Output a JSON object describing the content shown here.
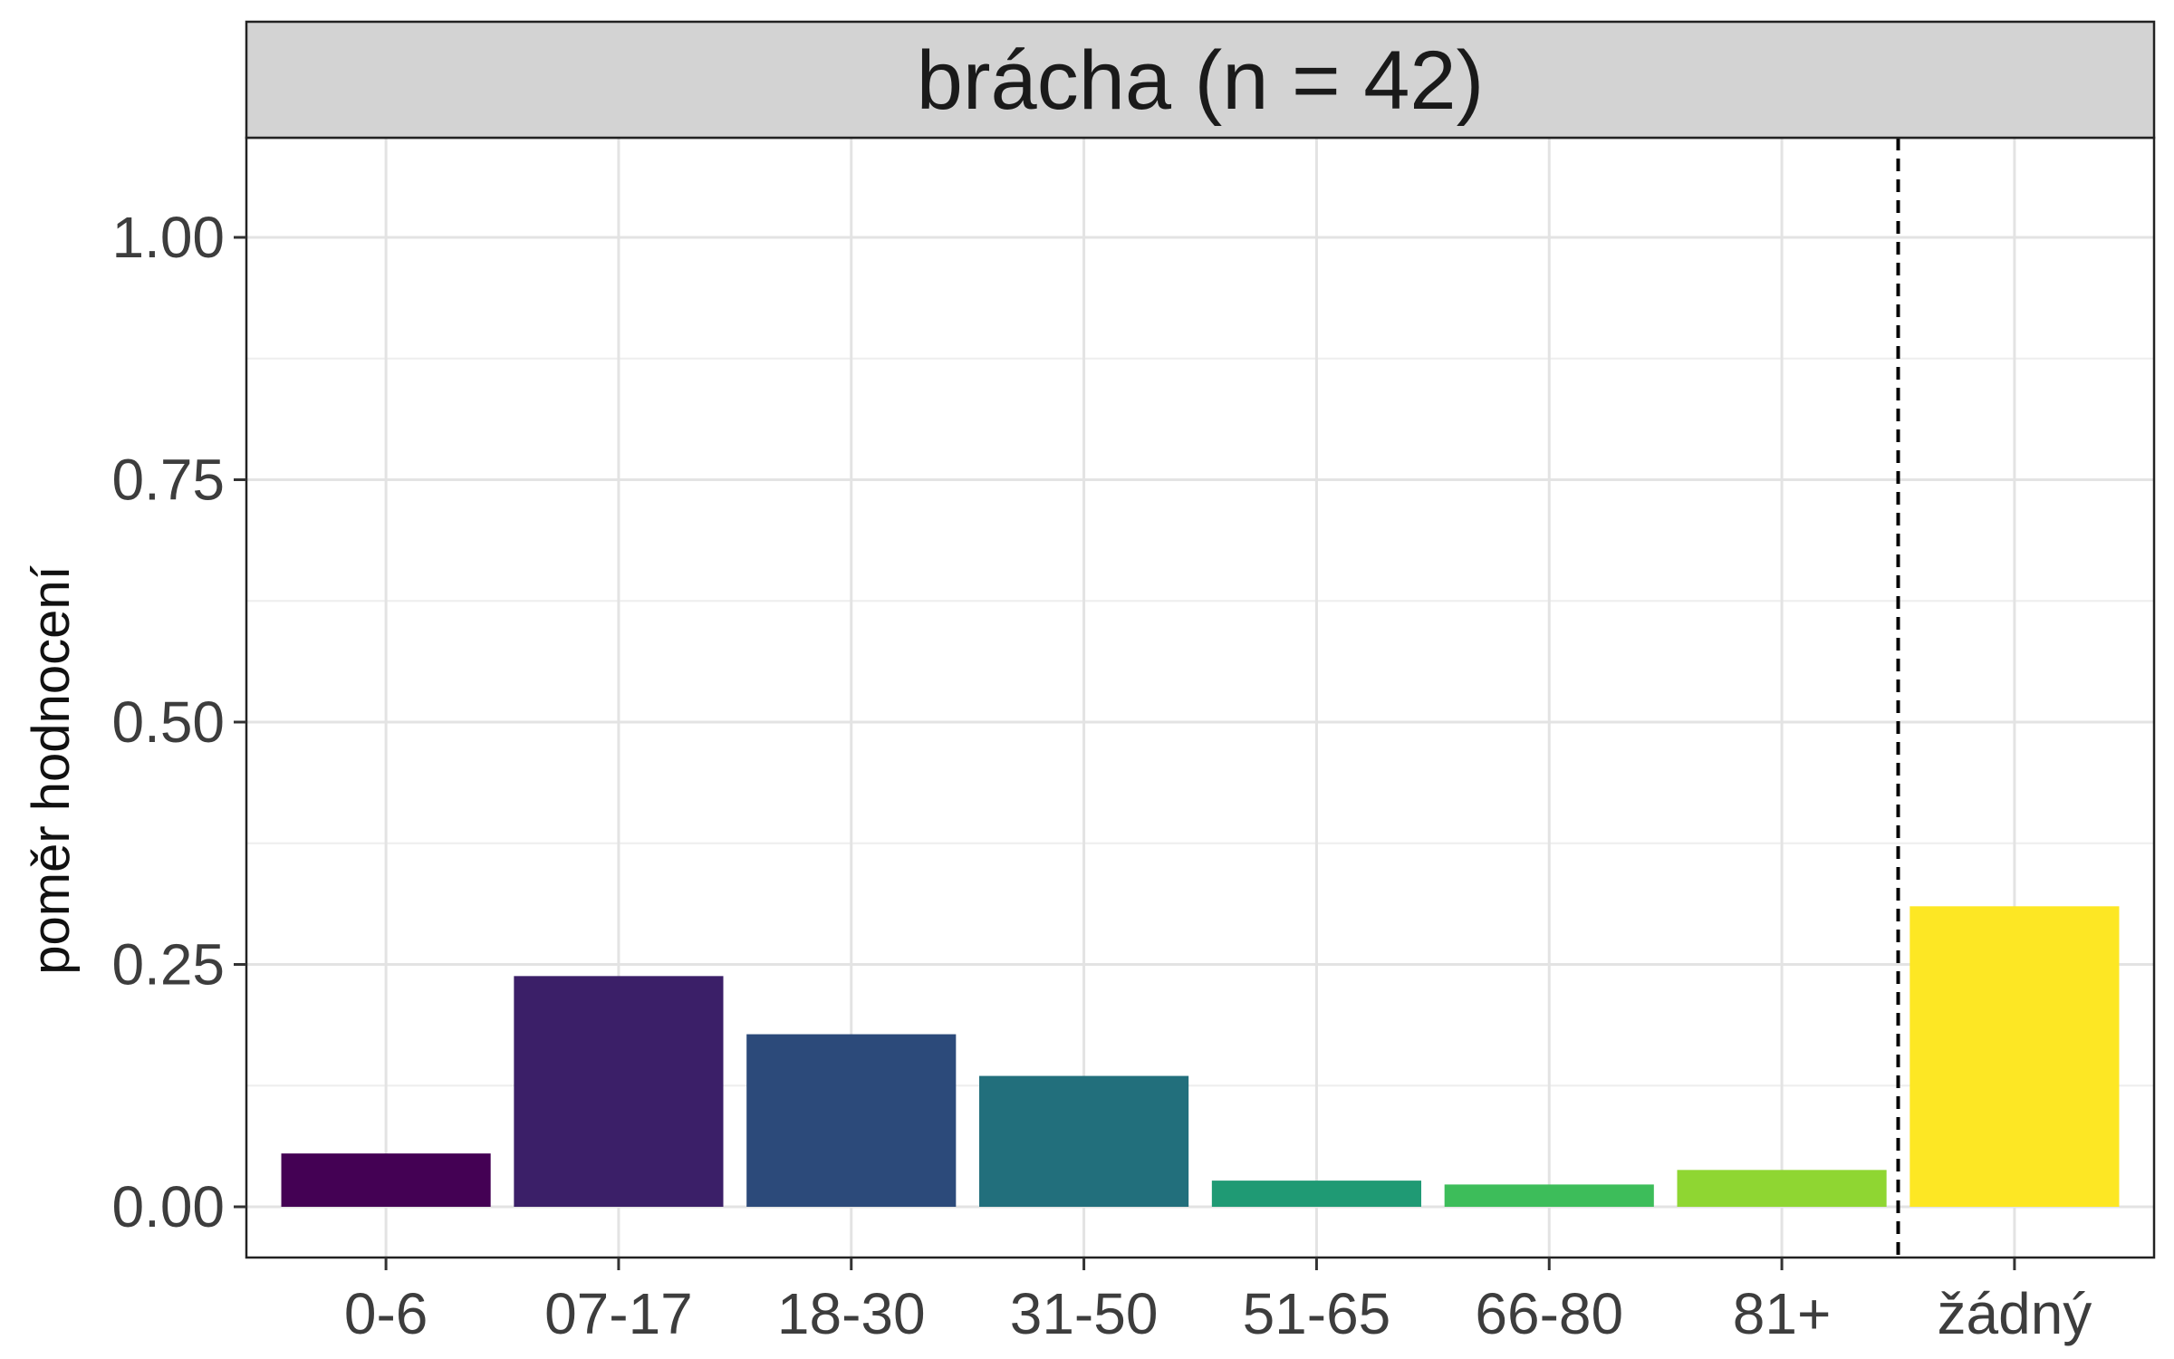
{
  "chart_data": {
    "type": "bar",
    "facet_title": "brácha (n = 42)",
    "xlabel": "",
    "ylabel": "poměr hodnocení",
    "ylim": [
      0,
      1.1
    ],
    "y_ticks": [
      "0.00",
      "0.25",
      "0.50",
      "0.75",
      "1.00"
    ],
    "y_tick_values": [
      0,
      0.25,
      0.5,
      0.75,
      1.0
    ],
    "categories": [
      "0-6",
      "07-17",
      "18-30",
      "31-50",
      "51-65",
      "66-80",
      "81+",
      "žádný"
    ],
    "values": [
      0.055,
      0.238,
      0.178,
      0.135,
      0.027,
      0.023,
      0.038,
      0.31
    ],
    "colors": [
      "#440154",
      "#3b1f68",
      "#2c4a7a",
      "#226f7c",
      "#1f9a74",
      "#3dbd5a",
      "#8fd632",
      "#fde724"
    ],
    "reference_line": {
      "between": [
        "81+",
        "žádný"
      ],
      "style": "dashed"
    },
    "grid": true,
    "legend": "none"
  }
}
